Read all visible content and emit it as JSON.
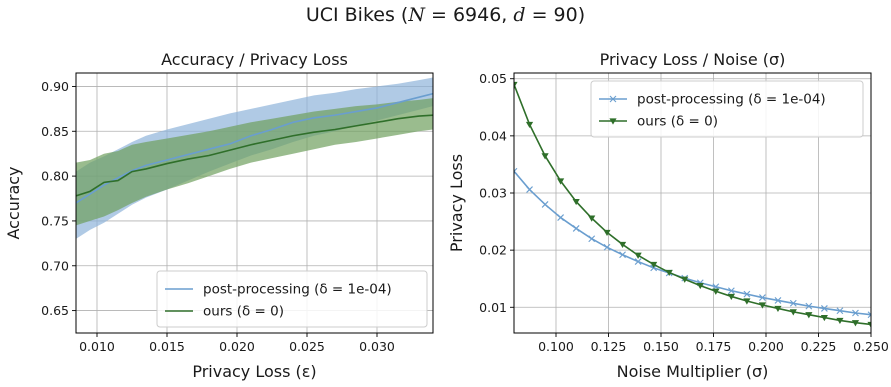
{
  "figure": {
    "suptitle_prefix": "UCI Bikes (",
    "suptitle_N": "N",
    "suptitle_mid": " = 6946, ",
    "suptitle_d": "d",
    "suptitle_suffix": " = 90)"
  },
  "colors": {
    "blue": "#6a9ecf",
    "blue_band": "#8fb4da",
    "green": "#2f6f2a",
    "green_band": "#6fa05e",
    "grid": "#b0b0b0"
  },
  "chart_data": [
    {
      "type": "line",
      "title": "Accuracy / Privacy Loss",
      "xlabel": "Privacy Loss (ε)",
      "ylabel": "Accuracy",
      "xlim": [
        0.0085,
        0.034
      ],
      "ylim": [
        0.625,
        0.915
      ],
      "xticks": [
        0.01,
        0.015,
        0.02,
        0.025,
        0.03
      ],
      "xtick_labels": [
        "0.010",
        "0.015",
        "0.020",
        "0.025",
        "0.030"
      ],
      "yticks": [
        0.65,
        0.7,
        0.75,
        0.8,
        0.85,
        0.9
      ],
      "ytick_labels": [
        "0.65",
        "0.70",
        "0.75",
        "0.80",
        "0.85",
        "0.90"
      ],
      "grid": true,
      "legend_position": "bottom-right",
      "series": [
        {
          "name": "post-processing (δ = 1e-04)",
          "color": "#6a9ecf",
          "band_color": "#8fb4da",
          "x": [
            0.0085,
            0.0095,
            0.0105,
            0.0115,
            0.0125,
            0.0135,
            0.015,
            0.0165,
            0.018,
            0.0195,
            0.021,
            0.0225,
            0.024,
            0.0255,
            0.027,
            0.0285,
            0.03,
            0.0315,
            0.033,
            0.034
          ],
          "y": [
            0.77,
            0.78,
            0.79,
            0.798,
            0.806,
            0.812,
            0.818,
            0.824,
            0.83,
            0.836,
            0.845,
            0.852,
            0.86,
            0.865,
            0.868,
            0.872,
            0.876,
            0.882,
            0.888,
            0.892
          ],
          "lower": [
            0.73,
            0.74,
            0.748,
            0.758,
            0.768,
            0.776,
            0.785,
            0.795,
            0.805,
            0.814,
            0.823,
            0.83,
            0.838,
            0.845,
            0.85,
            0.856,
            0.862,
            0.868,
            0.874,
            0.878
          ],
          "upper": [
            0.805,
            0.815,
            0.822,
            0.83,
            0.838,
            0.845,
            0.852,
            0.858,
            0.864,
            0.87,
            0.875,
            0.88,
            0.885,
            0.89,
            0.893,
            0.897,
            0.9,
            0.903,
            0.907,
            0.91
          ]
        },
        {
          "name": "ours (δ = 0)",
          "color": "#2f6f2a",
          "band_color": "#6fa05e",
          "x": [
            0.0085,
            0.0095,
            0.0105,
            0.0115,
            0.0125,
            0.0135,
            0.015,
            0.0165,
            0.018,
            0.0195,
            0.021,
            0.0225,
            0.024,
            0.0255,
            0.027,
            0.0285,
            0.03,
            0.0315,
            0.033,
            0.034
          ],
          "y": [
            0.778,
            0.783,
            0.793,
            0.795,
            0.805,
            0.808,
            0.814,
            0.819,
            0.823,
            0.829,
            0.835,
            0.84,
            0.845,
            0.849,
            0.852,
            0.856,
            0.86,
            0.864,
            0.867,
            0.868
          ],
          "lower": [
            0.745,
            0.75,
            0.755,
            0.762,
            0.77,
            0.777,
            0.785,
            0.792,
            0.8,
            0.808,
            0.815,
            0.82,
            0.825,
            0.83,
            0.835,
            0.838,
            0.842,
            0.846,
            0.85,
            0.852
          ],
          "upper": [
            0.815,
            0.818,
            0.825,
            0.828,
            0.835,
            0.838,
            0.842,
            0.846,
            0.85,
            0.855,
            0.86,
            0.864,
            0.868,
            0.872,
            0.875,
            0.878,
            0.88,
            0.883,
            0.885,
            0.887
          ]
        }
      ]
    },
    {
      "type": "line",
      "title": "Privacy Loss / Noise (σ)",
      "xlabel": "Noise Multiplier (σ)",
      "ylabel": "Privacy Loss",
      "xlim": [
        0.08,
        0.25
      ],
      "ylim": [
        0.0055,
        0.051
      ],
      "xticks": [
        0.1,
        0.125,
        0.15,
        0.175,
        0.2,
        0.225,
        0.25
      ],
      "xtick_labels": [
        "0.100",
        "0.125",
        "0.150",
        "0.175",
        "0.200",
        "0.225",
        "0.250"
      ],
      "yticks": [
        0.01,
        0.02,
        0.03,
        0.04,
        0.05
      ],
      "ytick_labels": [
        "0.01",
        "0.02",
        "0.03",
        "0.04",
        "0.05"
      ],
      "grid": true,
      "legend_position": "top-right",
      "series": [
        {
          "name": "post-processing (δ = 1e-04)",
          "color": "#6a9ecf",
          "marker": "x",
          "x": [
            0.08,
            0.0874,
            0.0948,
            0.1022,
            0.1096,
            0.117,
            0.1243,
            0.1317,
            0.1391,
            0.1465,
            0.1539,
            0.1613,
            0.1687,
            0.1761,
            0.1835,
            0.1909,
            0.1983,
            0.2057,
            0.213,
            0.2204,
            0.2278,
            0.2352,
            0.2426,
            0.25
          ],
          "y": [
            0.0338,
            0.0306,
            0.028,
            0.0257,
            0.0238,
            0.022,
            0.0205,
            0.0192,
            0.018,
            0.0169,
            0.016,
            0.0151,
            0.0143,
            0.0136,
            0.0129,
            0.0123,
            0.0117,
            0.0112,
            0.0107,
            0.0102,
            0.0098,
            0.0094,
            0.009,
            0.0087
          ]
        },
        {
          "name": "ours (δ = 0)",
          "color": "#2f6f2a",
          "marker": "triangle-down",
          "x": [
            0.08,
            0.0874,
            0.0948,
            0.1022,
            0.1096,
            0.117,
            0.1243,
            0.1317,
            0.1391,
            0.1465,
            0.1539,
            0.1613,
            0.1687,
            0.1761,
            0.1835,
            0.1909,
            0.1983,
            0.2057,
            0.213,
            0.2204,
            0.2278,
            0.2352,
            0.2426,
            0.25
          ],
          "y": [
            0.049,
            0.042,
            0.0365,
            0.0321,
            0.0285,
            0.0256,
            0.0231,
            0.021,
            0.0191,
            0.0175,
            0.0161,
            0.0149,
            0.0138,
            0.0128,
            0.0119,
            0.0111,
            0.0104,
            0.0098,
            0.0092,
            0.0087,
            0.0082,
            0.0077,
            0.0073,
            0.007
          ]
        }
      ]
    }
  ]
}
